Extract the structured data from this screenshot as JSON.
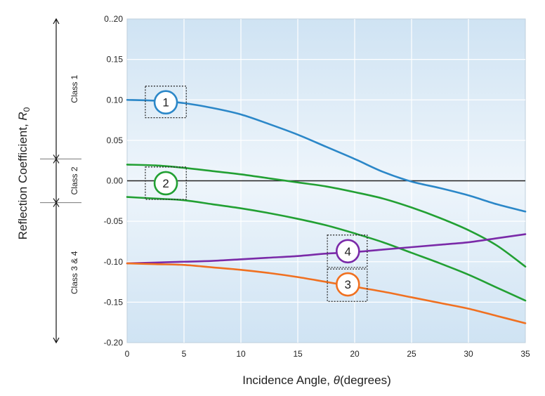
{
  "chart_data": {
    "type": "line",
    "title": "",
    "xlabel": "Incidence Angle, θ (degrees)",
    "xlabel_parts": {
      "prefix": "Incidence Angle, ",
      "symbol": "θ",
      "suffix": "(degrees)"
    },
    "ylabel": "Reflection Coefficient, R0",
    "ylabel_parts": {
      "prefix": "Reflection Coefficient, ",
      "symbol": "R",
      "subscript": "0"
    },
    "xlim": [
      0,
      35
    ],
    "ylim": [
      -0.2,
      0.2
    ],
    "x_ticks": [
      {
        "value": 0,
        "label": "0"
      },
      {
        "value": 5,
        "label": "5"
      },
      {
        "value": 10,
        "label": "10"
      },
      {
        "value": 15,
        "label": "15"
      },
      {
        "value": 20,
        "label": "20"
      },
      {
        "value": 25,
        "label": "25"
      },
      {
        "value": 30,
        "label": "30"
      },
      {
        "value": 35,
        "label": "35"
      }
    ],
    "y_ticks": [
      {
        "value": 0.2,
        "label": "0..20"
      },
      {
        "value": 0.15,
        "label": "0.15"
      },
      {
        "value": 0.1,
        "label": "0.10"
      },
      {
        "value": 0.05,
        "label": "0.05"
      },
      {
        "value": 0.0,
        "label": "0.00"
      },
      {
        "value": -0.05,
        "label": "-0.05"
      },
      {
        "value": -0.1,
        "label": "-0.10"
      },
      {
        "value": -0.15,
        "label": "-0.15"
      },
      {
        "value": -0.2,
        "label": "-0.20"
      }
    ],
    "grid": true,
    "zero_line": 0,
    "x": [
      0,
      2.5,
      5,
      7.5,
      10,
      12.5,
      15,
      17.5,
      20,
      22.5,
      25,
      27.5,
      30,
      32.5,
      35
    ],
    "series": [
      {
        "key": "class1",
        "color": "#2b87c8",
        "values": [
          0.1,
          0.099,
          0.096,
          0.09,
          0.082,
          0.07,
          0.057,
          0.042,
          0.027,
          0.011,
          -0.001,
          -0.009,
          -0.018,
          -0.029,
          -0.038
        ]
      },
      {
        "key": "class2_upper",
        "color": "#22a033",
        "values": [
          0.02,
          0.019,
          0.016,
          0.012,
          0.008,
          0.003,
          -0.002,
          -0.007,
          -0.014,
          -0.022,
          -0.033,
          -0.046,
          -0.061,
          -0.08,
          -0.106
        ]
      },
      {
        "key": "class2_lower",
        "color": "#22a033",
        "values": [
          -0.02,
          -0.022,
          -0.024,
          -0.029,
          -0.034,
          -0.04,
          -0.047,
          -0.055,
          -0.065,
          -0.076,
          -0.089,
          -0.102,
          -0.116,
          -0.132,
          -0.148
        ]
      },
      {
        "key": "class4",
        "color": "#7a2aa8",
        "values": [
          -0.102,
          -0.101,
          -0.1,
          -0.099,
          -0.097,
          -0.095,
          -0.093,
          -0.09,
          -0.088,
          -0.085,
          -0.082,
          -0.079,
          -0.076,
          -0.071,
          -0.066
        ]
      },
      {
        "key": "class3",
        "color": "#f07020",
        "values": [
          -0.102,
          -0.103,
          -0.104,
          -0.107,
          -0.11,
          -0.114,
          -0.119,
          -0.125,
          -0.131,
          -0.137,
          -0.144,
          -0.151,
          -0.158,
          -0.167,
          -0.176
        ]
      }
    ],
    "markers": [
      {
        "label": "1",
        "color": "#2b87c8",
        "x": 3.4,
        "y": 0.097,
        "box": {
          "x0": 1.6,
          "x1": 5.2,
          "y0": 0.117,
          "y1": 0.078
        }
      },
      {
        "label": "2",
        "color": "#22a033",
        "x": 3.4,
        "y": -0.003,
        "box": {
          "x0": 1.6,
          "x1": 5.2,
          "y0": 0.017,
          "y1": -0.023
        }
      },
      {
        "label": "4",
        "color": "#7a2aa8",
        "x": 19.4,
        "y": -0.087,
        "box": {
          "x0": 17.6,
          "x1": 21.1,
          "y0": -0.067,
          "y1": -0.107
        }
      },
      {
        "label": "3",
        "color": "#f07020",
        "x": 19.4,
        "y": -0.128,
        "box": {
          "x0": 17.6,
          "x1": 21.1,
          "y0": -0.109,
          "y1": -0.149
        }
      }
    ],
    "classes": [
      {
        "label": "Class 1",
        "from": 0.2,
        "to": 0.027
      },
      {
        "label": "Class 2",
        "from": 0.027,
        "to": -0.027
      },
      {
        "label": "Class 3 & 4",
        "from": -0.027,
        "to": -0.2
      }
    ]
  }
}
